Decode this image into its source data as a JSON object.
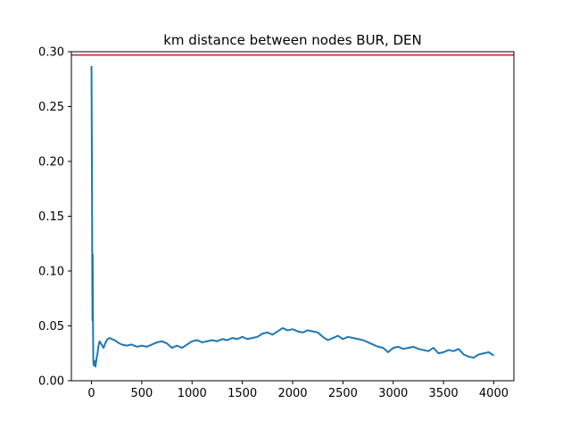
{
  "chart_data": {
    "type": "line",
    "title": "km distance between nodes BUR, DEN",
    "xlabel": "",
    "ylabel": "",
    "xlim": [
      -200,
      4200
    ],
    "ylim": [
      0,
      0.3
    ],
    "x_ticks": [
      0,
      500,
      1000,
      1500,
      2000,
      2500,
      3000,
      3500,
      4000
    ],
    "y_ticks": [
      0.0,
      0.05,
      0.1,
      0.15,
      0.2,
      0.25,
      0.3
    ],
    "x_tick_labels": [
      "0",
      "500",
      "1000",
      "1500",
      "2000",
      "2500",
      "3000",
      "3500",
      "4000"
    ],
    "y_tick_labels": [
      "0.00",
      "0.05",
      "0.10",
      "0.15",
      "0.20",
      "0.25",
      "0.30"
    ],
    "grid": false,
    "series": [
      {
        "color": "#1f77b4",
        "x": [
          0,
          2,
          4,
          6,
          8,
          10,
          12,
          14,
          16,
          18,
          20,
          25,
          30,
          40,
          50,
          60,
          70,
          80,
          100,
          120,
          140,
          160,
          180,
          200,
          230,
          260,
          300,
          350,
          400,
          450,
          500,
          550,
          600,
          650,
          700,
          750,
          800,
          850,
          900,
          950,
          1000,
          1050,
          1100,
          1150,
          1200,
          1250,
          1300,
          1350,
          1400,
          1450,
          1500,
          1550,
          1600,
          1650,
          1700,
          1750,
          1800,
          1850,
          1900,
          1950,
          2000,
          2050,
          2100,
          2150,
          2200,
          2250,
          2300,
          2350,
          2400,
          2450,
          2500,
          2550,
          2600,
          2650,
          2700,
          2750,
          2800,
          2850,
          2900,
          2950,
          3000,
          3050,
          3100,
          3150,
          3200,
          3250,
          3300,
          3350,
          3400,
          3450,
          3500,
          3550,
          3600,
          3650,
          3700,
          3750,
          3800,
          3850,
          3900,
          3950,
          4000
        ],
        "y": [
          0.287,
          0.24,
          0.2,
          0.146,
          0.09,
          0.055,
          0.115,
          0.07,
          0.04,
          0.02,
          0.015,
          0.014,
          0.018,
          0.013,
          0.02,
          0.025,
          0.032,
          0.036,
          0.033,
          0.03,
          0.035,
          0.038,
          0.039,
          0.038,
          0.037,
          0.035,
          0.033,
          0.032,
          0.033,
          0.031,
          0.032,
          0.031,
          0.033,
          0.035,
          0.036,
          0.034,
          0.03,
          0.032,
          0.03,
          0.033,
          0.036,
          0.037,
          0.035,
          0.036,
          0.037,
          0.036,
          0.038,
          0.037,
          0.039,
          0.038,
          0.04,
          0.038,
          0.039,
          0.04,
          0.043,
          0.044,
          0.042,
          0.045,
          0.048,
          0.046,
          0.047,
          0.045,
          0.044,
          0.046,
          0.045,
          0.044,
          0.04,
          0.037,
          0.039,
          0.041,
          0.038,
          0.04,
          0.039,
          0.038,
          0.037,
          0.035,
          0.033,
          0.031,
          0.03,
          0.026,
          0.03,
          0.031,
          0.029,
          0.03,
          0.031,
          0.029,
          0.028,
          0.027,
          0.03,
          0.025,
          0.026,
          0.028,
          0.027,
          0.029,
          0.024,
          0.022,
          0.021,
          0.024,
          0.025,
          0.026,
          0.023
        ]
      }
    ],
    "reference_line": {
      "y": 0.297,
      "color": "#d62728"
    }
  }
}
